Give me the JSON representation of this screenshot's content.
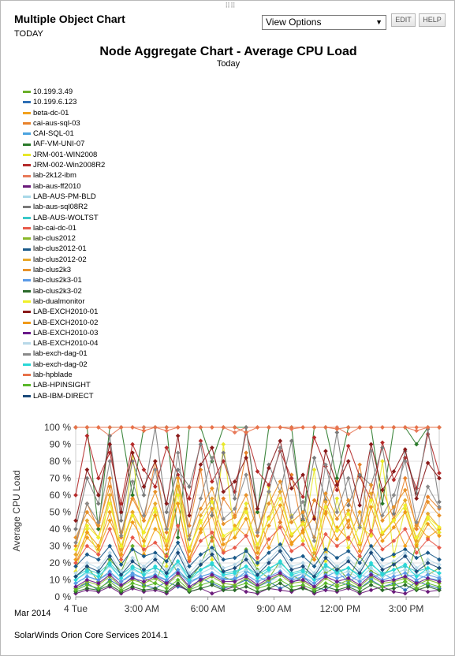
{
  "resource": {
    "title": "Multiple Object Chart",
    "subtitle": "TODAY",
    "view_options": "View Options",
    "edit_label": "EDIT",
    "help_label": "HELP"
  },
  "footer": "SolarWinds Orion Core Services 2014.1",
  "chart_data": {
    "type": "line",
    "title": "Node Aggregate Chart - Average CPU Load",
    "subtitle": "Today",
    "ylabel": "Average CPU Load",
    "xlabel": "",
    "date_label": "Mar 2014",
    "ylim": [
      0,
      100
    ],
    "yticks": [
      "0 %",
      "10 %",
      "20 %",
      "30 %",
      "40 %",
      "50 %",
      "60 %",
      "70 %",
      "80 %",
      "90 %",
      "100 %"
    ],
    "xlim": [
      0,
      16.5
    ],
    "xticks": [
      {
        "label": "4 Tue",
        "hour": 0
      },
      {
        "label": "3:00 AM",
        "hour": 3
      },
      {
        "label": "6:00 AM",
        "hour": 6
      },
      {
        "label": "9:00 AM",
        "hour": 9
      },
      {
        "label": "12:00 PM",
        "hour": 12
      },
      {
        "label": "3:00 PM",
        "hour": 15
      }
    ],
    "grid": true,
    "legend_position": "top-left",
    "series": [
      {
        "name": "10.199.3.49",
        "color": "#6aaf2a",
        "values": [
          12,
          18,
          9,
          22,
          15,
          30,
          11,
          8,
          25,
          14,
          10,
          19,
          35,
          12,
          9,
          28,
          16,
          11,
          21,
          13,
          9,
          26,
          14,
          18,
          10,
          24,
          15,
          12,
          20,
          9,
          31,
          13,
          17
        ]
      },
      {
        "name": "10.199.6.123",
        "color": "#2e6fb5",
        "values": [
          5,
          8,
          4,
          10,
          6,
          12,
          7,
          5,
          9,
          6,
          4,
          11,
          8,
          5,
          7,
          10,
          6,
          9,
          5,
          8,
          12,
          6,
          4,
          9,
          7,
          5,
          10,
          6,
          8,
          4,
          9,
          7,
          5
        ]
      },
      {
        "name": "beta-dc-01",
        "color": "#f2a11e",
        "values": [
          20,
          35,
          28,
          45,
          30,
          50,
          25,
          40,
          33,
          55,
          22,
          38,
          48,
          27,
          42,
          36,
          52,
          29,
          44,
          31,
          39,
          47,
          26,
          41,
          34,
          50,
          28,
          37,
          45,
          30,
          43,
          35,
          40
        ]
      },
      {
        "name": "cai-aus-sql-03",
        "color": "#e8822a",
        "values": [
          30,
          55,
          40,
          70,
          35,
          60,
          45,
          80,
          38,
          65,
          42,
          75,
          33,
          58,
          48,
          85,
          36,
          62,
          44,
          72,
          39,
          57,
          50,
          68,
          41,
          78,
          37,
          63,
          46,
          70,
          40,
          59,
          52
        ]
      },
      {
        "name": "CAI-SQL-01",
        "color": "#4aa3df",
        "values": [
          8,
          12,
          10,
          15,
          9,
          14,
          11,
          13,
          10,
          16,
          9,
          12,
          14,
          11,
          10,
          15,
          12,
          9,
          13,
          11,
          14,
          10,
          12,
          15,
          9,
          13,
          11,
          14,
          10,
          12,
          13,
          11,
          10
        ]
      },
      {
        "name": "IAF-VM-UNI-07",
        "color": "#2a7a2a",
        "values": [
          100,
          100,
          40,
          100,
          100,
          60,
          100,
          100,
          100,
          35,
          100,
          100,
          80,
          100,
          100,
          100,
          50,
          100,
          100,
          100,
          45,
          100,
          100,
          70,
          100,
          100,
          100,
          55,
          100,
          100,
          90,
          100,
          100
        ]
      },
      {
        "name": "JRM-001-WIN2008",
        "color": "#e8e82a",
        "values": [
          15,
          40,
          25,
          60,
          20,
          85,
          30,
          50,
          18,
          70,
          28,
          45,
          22,
          90,
          35,
          55,
          19,
          65,
          27,
          48,
          33,
          75,
          21,
          58,
          29,
          42,
          36,
          80,
          24,
          52,
          31,
          46,
          38
        ]
      },
      {
        "name": "JRM-002-Win2008R2",
        "color": "#b52a2a",
        "values": [
          60,
          95,
          70,
          85,
          55,
          90,
          75,
          65,
          88,
          72,
          58,
          92,
          68,
          80,
          62,
          97,
          74,
          66,
          86,
          70,
          59,
          94,
          77,
          63,
          89,
          71,
          57,
          91,
          69,
          82,
          64,
          96,
          73
        ]
      },
      {
        "name": "lab-2k12-ibm",
        "color": "#e87a5a",
        "values": [
          100,
          100,
          100,
          95,
          100,
          100,
          100,
          100,
          98,
          100,
          100,
          100,
          100,
          100,
          97,
          100,
          100,
          100,
          100,
          99,
          100,
          100,
          100,
          100,
          96,
          100,
          100,
          100,
          100,
          100,
          98,
          100,
          100
        ]
      },
      {
        "name": "lab-aus-ff2010",
        "color": "#6a1a7a",
        "values": [
          2,
          4,
          3,
          6,
          2,
          5,
          3,
          4,
          2,
          7,
          3,
          5,
          2,
          4,
          6,
          3,
          2,
          5,
          4,
          3,
          6,
          2,
          4,
          3,
          5,
          2,
          4,
          6,
          3,
          2,
          5,
          3,
          4
        ]
      },
      {
        "name": "LAB-AUS-PM-BLD",
        "color": "#a8d8e8",
        "values": [
          10,
          14,
          12,
          18,
          11,
          16,
          13,
          15,
          12,
          19,
          10,
          14,
          17,
          12,
          13,
          16,
          11,
          15,
          18,
          12,
          14,
          10,
          16,
          13,
          15,
          11,
          17,
          12,
          14,
          16,
          13,
          15,
          12
        ]
      },
      {
        "name": "lab-aus-sql08R2",
        "color": "#7a7a7a",
        "values": [
          40,
          70,
          55,
          95,
          45,
          80,
          60,
          100,
          50,
          75,
          65,
          90,
          48,
          85,
          58,
          100,
          52,
          78,
          62,
          92,
          46,
          82,
          57,
          97,
          54,
          72,
          66,
          88,
          49,
          86,
          61,
          99,
          56
        ]
      },
      {
        "name": "LAB-AUS-WOLTST",
        "color": "#3ac8c8",
        "values": [
          12,
          16,
          14,
          20,
          13,
          18,
          15,
          17,
          14,
          21,
          12,
          16,
          19,
          14,
          15,
          18,
          13,
          17,
          20,
          14,
          16,
          12,
          18,
          15,
          17,
          13,
          19,
          14,
          16,
          18,
          15,
          17,
          14
        ]
      },
      {
        "name": "lab-cai-dc-01",
        "color": "#e85a4a",
        "values": [
          20,
          30,
          25,
          40,
          22,
          35,
          28,
          32,
          24,
          42,
          21,
          33,
          38,
          26,
          29,
          36,
          23,
          34,
          41,
          27,
          31,
          22,
          37,
          30,
          35,
          24,
          39,
          28,
          33,
          40,
          26,
          34,
          29
        ]
      },
      {
        "name": "lab-clus2012",
        "color": "#8ab82a",
        "values": [
          5,
          9,
          7,
          12,
          6,
          10,
          8,
          11,
          7,
          13,
          5,
          9,
          12,
          8,
          7,
          11,
          6,
          10,
          13,
          8,
          9,
          5,
          11,
          7,
          10,
          6,
          12,
          8,
          9,
          11,
          7,
          10,
          8
        ]
      },
      {
        "name": "lab-clus2012-01",
        "color": "#1a5a8a",
        "values": [
          18,
          25,
          22,
          30,
          19,
          28,
          24,
          26,
          21,
          32,
          18,
          25,
          29,
          22,
          23,
          27,
          20,
          26,
          31,
          22,
          24,
          18,
          28,
          23,
          27,
          20,
          30,
          22,
          25,
          28,
          23,
          26,
          22
        ]
      },
      {
        "name": "lab-clus2012-02",
        "color": "#e8a82a",
        "values": [
          25,
          45,
          35,
          60,
          28,
          50,
          38,
          55,
          30,
          65,
          27,
          48,
          58,
          34,
          40,
          52,
          29,
          47,
          62,
          36,
          44,
          26,
          56,
          39,
          51,
          31,
          61,
          37,
          46,
          57,
          33,
          49,
          41
        ]
      },
      {
        "name": "lab-clus2k3",
        "color": "#e8922a",
        "values": [
          35,
          50,
          42,
          65,
          38,
          58,
          45,
          62,
          40,
          70,
          36,
          52,
          64,
          43,
          47,
          60,
          39,
          55,
          68,
          44,
          50,
          35,
          61,
          46,
          57,
          41,
          66,
          45,
          53,
          63,
          42,
          56,
          48
        ]
      },
      {
        "name": "lab-clus2k3-01",
        "color": "#5a9ae8",
        "values": [
          8,
          12,
          10,
          14,
          9,
          13,
          11,
          12,
          10,
          15,
          8,
          12,
          14,
          10,
          11,
          13,
          9,
          12,
          15,
          10,
          12,
          8,
          13,
          11,
          13,
          9,
          14,
          10,
          12,
          14,
          10,
          13,
          11
        ]
      },
      {
        "name": "lab-clus2k3-02",
        "color": "#2a6a2a",
        "values": [
          3,
          5,
          4,
          7,
          3,
          6,
          4,
          5,
          3,
          8,
          3,
          5,
          7,
          4,
          4,
          6,
          3,
          5,
          8,
          4,
          5,
          3,
          6,
          4,
          6,
          3,
          7,
          4,
          5,
          7,
          4,
          6,
          4
        ]
      },
      {
        "name": "lab-dualmonitor",
        "color": "#f0f02a",
        "values": [
          28,
          42,
          35,
          55,
          30,
          48,
          38,
          52,
          33,
          60,
          29,
          44,
          56,
          36,
          40,
          50,
          31,
          46,
          58,
          37,
          43,
          28,
          53,
          39,
          49,
          32,
          57,
          38,
          45,
          54,
          35,
          47,
          41
        ]
      },
      {
        "name": "LAB-EXCH2010-01",
        "color": "#8a1a1a",
        "values": [
          45,
          75,
          60,
          90,
          50,
          85,
          65,
          80,
          55,
          95,
          48,
          78,
          88,
          62,
          68,
          82,
          52,
          76,
          92,
          64,
          72,
          46,
          86,
          66,
          80,
          54,
          90,
          63,
          74,
          87,
          58,
          79,
          70
        ]
      },
      {
        "name": "LAB-EXCH2010-02",
        "color": "#f09a1a",
        "values": [
          22,
          38,
          30,
          50,
          25,
          44,
          33,
          48,
          28,
          55,
          23,
          40,
          52,
          31,
          35,
          46,
          26,
          42,
          54,
          32,
          38,
          22,
          49,
          34,
          45,
          27,
          53,
          33,
          41,
          50,
          30,
          43,
          36
        ]
      },
      {
        "name": "LAB-EXCH2010-03",
        "color": "#6a1a8a",
        "values": [
          6,
          10,
          8,
          13,
          7,
          11,
          9,
          12,
          8,
          14,
          6,
          10,
          13,
          9,
          9,
          12,
          7,
          11,
          14,
          9,
          10,
          6,
          12,
          9,
          11,
          7,
          13,
          9,
          10,
          12,
          8,
          11,
          9
        ]
      },
      {
        "name": "LAB-EXCH2010-04",
        "color": "#b8d8e8",
        "values": [
          14,
          20,
          17,
          26,
          15,
          23,
          18,
          24,
          16,
          28,
          14,
          21,
          27,
          17,
          19,
          24,
          15,
          22,
          29,
          18,
          20,
          14,
          25,
          18,
          23,
          16,
          28,
          18,
          21,
          26,
          17,
          22,
          19
        ]
      },
      {
        "name": "lab-exch-dag-01",
        "color": "#8a8a8a",
        "values": [
          32,
          55,
          44,
          80,
          36,
          68,
          48,
          75,
          40,
          85,
          34,
          58,
          82,
          46,
          52,
          72,
          38,
          62,
          88,
          47,
          56,
          33,
          78,
          50,
          70,
          41,
          86,
          48,
          60,
          80,
          44,
          65,
          53
        ]
      },
      {
        "name": "lab-exch-dag-02",
        "color": "#2ad8d8",
        "values": [
          10,
          15,
          12,
          19,
          11,
          17,
          13,
          18,
          12,
          21,
          10,
          16,
          20,
          13,
          14,
          18,
          11,
          16,
          21,
          13,
          15,
          10,
          19,
          14,
          17,
          12,
          20,
          13,
          16,
          19,
          12,
          17,
          14
        ]
      },
      {
        "name": "lab-hpblade",
        "color": "#e8724a",
        "values": [
          100,
          100,
          100,
          100,
          100,
          100,
          98,
          100,
          100,
          100,
          100,
          100,
          100,
          100,
          100,
          97,
          100,
          100,
          100,
          100,
          100,
          100,
          100,
          99,
          100,
          100,
          100,
          100,
          100,
          100,
          100,
          100,
          100
        ]
      },
      {
        "name": "LAB-HPINSIGHT",
        "color": "#5ab82a",
        "values": [
          4,
          7,
          5,
          9,
          4,
          8,
          6,
          8,
          5,
          10,
          4,
          7,
          9,
          6,
          6,
          8,
          5,
          7,
          10,
          6,
          7,
          4,
          8,
          6,
          8,
          5,
          9,
          6,
          7,
          9,
          5,
          8,
          6
        ]
      },
      {
        "name": "LAB-IBM-DIRECT",
        "color": "#1a4a7a",
        "values": [
          12,
          18,
          15,
          24,
          13,
          21,
          16,
          22,
          14,
          26,
          12,
          19,
          25,
          15,
          17,
          22,
          13,
          20,
          27,
          16,
          18,
          12,
          23,
          16,
          21,
          14,
          26,
          16,
          19,
          24,
          15,
          20,
          17
        ]
      }
    ]
  }
}
